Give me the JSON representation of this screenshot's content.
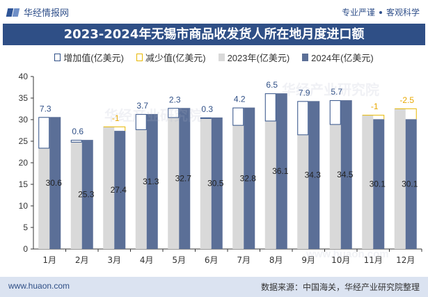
{
  "header": {
    "brand": "华经情报网",
    "tagline_left": "专业严谨",
    "tagline_right": "客观科学"
  },
  "title": "2023-2024年无锡市商品收发货人所在地月度进口额",
  "legend": {
    "increase": "增加值(亿美元)",
    "decrease": "减少值(亿美元)",
    "y2023": "2023年(亿美元)",
    "y2024": "2024年(亿美元)"
  },
  "footer": {
    "website": "www.huaon.com",
    "source": "数据来源：中国海关，华经产业研究院整理"
  },
  "watermarks": [
    "华经产业研究院",
    "www.huaon.com"
  ],
  "colors": {
    "y2023": "#d9d9d9",
    "y2024": "#5b6f97",
    "increase_border": "#2f4f86",
    "decrease_border": "#e8b800",
    "increase_label": "#2f4f86",
    "decrease_label": "#e8a800"
  },
  "chart_data": {
    "type": "bar",
    "categories": [
      "1月",
      "2月",
      "3月",
      "4月",
      "5月",
      "6月",
      "7月",
      "8月",
      "9月",
      "10月",
      "11月",
      "12月"
    ],
    "series": [
      {
        "name": "2023年(亿美元)",
        "values": [
          23.3,
          24.7,
          28.4,
          27.6,
          30.4,
          30.2,
          28.6,
          29.6,
          26.4,
          28.8,
          31.1,
          32.6
        ]
      },
      {
        "name": "2024年(亿美元)",
        "values": [
          30.6,
          25.3,
          27.4,
          31.3,
          32.7,
          30.5,
          32.8,
          36.1,
          34.3,
          34.5,
          30.1,
          30.1
        ]
      }
    ],
    "change_labels": [
      "7.3",
      "0.6",
      "-1",
      "3.7",
      "2.3",
      "0.3",
      "4.2",
      "6.5",
      "7.9",
      "5.7",
      "-1",
      "-2.5"
    ],
    "ylim": [
      0,
      40
    ],
    "yticks": [
      0,
      5,
      10,
      15,
      20,
      25,
      30,
      35,
      40
    ],
    "grid": false,
    "legend_position": "top"
  }
}
